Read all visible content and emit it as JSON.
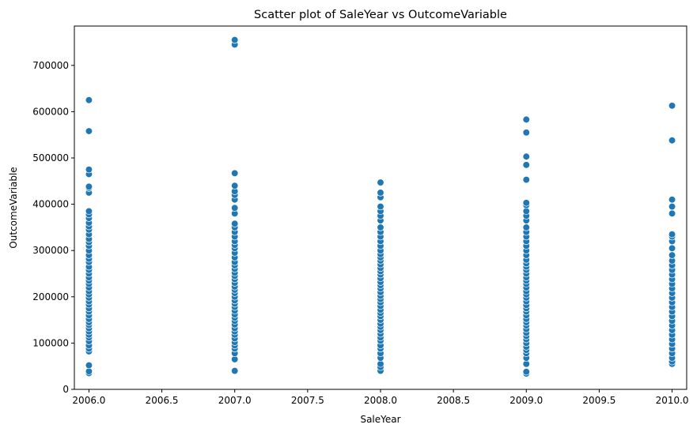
{
  "chart_data": {
    "type": "scatter",
    "title": "Scatter plot of SaleYear vs OutcomeVariable",
    "xlabel": "SaleYear",
    "ylabel": "OutcomeVariable",
    "xlim": [
      2005.9,
      2010.1
    ],
    "ylim": [
      0,
      785000
    ],
    "xticks": [
      2006.0,
      2006.5,
      2007.0,
      2007.5,
      2008.0,
      2008.5,
      2009.0,
      2009.5,
      2010.0
    ],
    "xtick_labels": [
      "2006.0",
      "2006.5",
      "2007.0",
      "2007.5",
      "2008.0",
      "2008.5",
      "2009.0",
      "2009.5",
      "2010.0"
    ],
    "yticks": [
      0,
      100000,
      200000,
      300000,
      400000,
      500000,
      600000,
      700000
    ],
    "ytick_labels": [
      "0",
      "100000",
      "200000",
      "300000",
      "400000",
      "500000",
      "600000",
      "700000"
    ],
    "grid": false,
    "marker_color": "#1f77b4",
    "series": [
      {
        "name": "2006",
        "x": 2006.0,
        "values": [
          35000,
          39000,
          52000,
          82000,
          88000,
          95000,
          104000,
          112000,
          118000,
          125000,
          132000,
          139000,
          145000,
          152000,
          160000,
          168000,
          175000,
          183000,
          190000,
          198000,
          205000,
          212000,
          220000,
          228000,
          235000,
          242000,
          250000,
          258000,
          265000,
          275000,
          282000,
          290000,
          300000,
          310000,
          318000,
          325000,
          335000,
          345000,
          352000,
          360000,
          370000,
          378000,
          385000,
          425000,
          435000,
          438000,
          465000,
          475000,
          558000,
          625000
        ]
      },
      {
        "name": "2007",
        "x": 2007.0,
        "values": [
          40000,
          65000,
          78000,
          88000,
          95000,
          102000,
          110000,
          118000,
          125000,
          132000,
          140000,
          148000,
          155000,
          162000,
          170000,
          178000,
          185000,
          192000,
          200000,
          208000,
          215000,
          222000,
          230000,
          238000,
          245000,
          252000,
          260000,
          268000,
          275000,
          285000,
          295000,
          305000,
          312000,
          320000,
          330000,
          340000,
          350000,
          358000,
          380000,
          392000,
          410000,
          420000,
          428000,
          440000,
          467000,
          745000,
          755000
        ]
      },
      {
        "name": "2008",
        "x": 2008.0,
        "values": [
          40000,
          48000,
          55000,
          68000,
          78000,
          88000,
          95000,
          105000,
          112000,
          120000,
          128000,
          135000,
          142000,
          150000,
          158000,
          165000,
          172000,
          180000,
          188000,
          195000,
          202000,
          210000,
          218000,
          225000,
          232000,
          240000,
          248000,
          255000,
          262000,
          270000,
          278000,
          285000,
          292000,
          300000,
          310000,
          320000,
          330000,
          340000,
          350000,
          365000,
          375000,
          385000,
          395000,
          415000,
          425000,
          447000
        ]
      },
      {
        "name": "2009",
        "x": 2009.0,
        "values": [
          34000,
          38000,
          55000,
          68000,
          78000,
          85000,
          92000,
          100000,
          108000,
          115000,
          122000,
          130000,
          138000,
          145000,
          152000,
          160000,
          168000,
          175000,
          182000,
          190000,
          198000,
          205000,
          212000,
          220000,
          228000,
          235000,
          242000,
          250000,
          258000,
          265000,
          272000,
          280000,
          290000,
          300000,
          310000,
          320000,
          330000,
          340000,
          350000,
          365000,
          375000,
          385000,
          398000,
          403000,
          453000,
          485000,
          503000,
          555000,
          583000
        ]
      },
      {
        "name": "2010",
        "x": 2010.0,
        "values": [
          55000,
          60000,
          68000,
          78000,
          88000,
          98000,
          108000,
          118000,
          128000,
          138000,
          148000,
          158000,
          168000,
          178000,
          188000,
          198000,
          208000,
          218000,
          228000,
          238000,
          248000,
          258000,
          268000,
          278000,
          290000,
          305000,
          320000,
          330000,
          335000,
          380000,
          395000,
          410000,
          538000,
          613000
        ]
      }
    ]
  }
}
